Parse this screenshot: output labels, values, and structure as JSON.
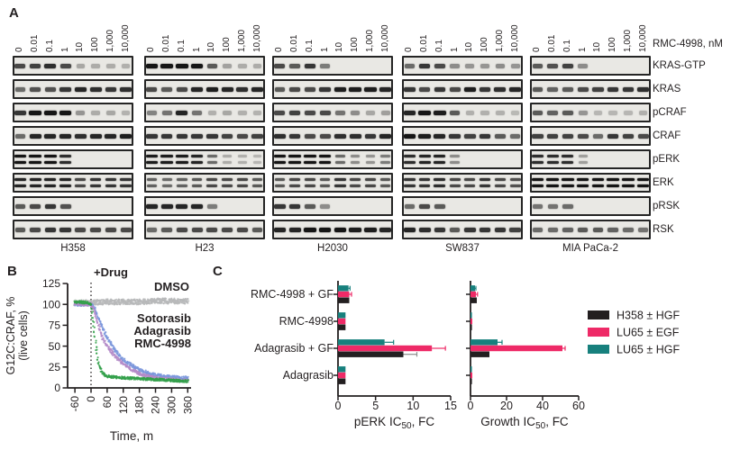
{
  "panels": {
    "a": "A",
    "b": "B",
    "c": "C"
  },
  "panelA": {
    "dose_labels": [
      "0",
      "0.01",
      "0.1",
      "1",
      "10",
      "100",
      "1,000",
      "10,000"
    ],
    "dose_unit_label": "RMC-4998, nM",
    "row_labels": [
      "KRAS-GTP",
      "KRAS",
      "pCRAF",
      "CRAF",
      "pERK",
      "ERK",
      "pRSK",
      "RSK"
    ],
    "double_band_rows": [
      "pERK",
      "ERK"
    ],
    "cell_lines": [
      {
        "name": "H358",
        "rows": [
          [
            0.7,
            0.75,
            0.85,
            0.7,
            0.15,
            0.12,
            0.12,
            0.1
          ],
          [
            0.5,
            0.65,
            0.65,
            0.8,
            0.9,
            0.85,
            0.8,
            0.85
          ],
          [
            0.8,
            1,
            1,
            1,
            0.25,
            0.12,
            0.15,
            0.08
          ],
          [
            0.5,
            0.9,
            0.9,
            0.9,
            0.85,
            0.9,
            0.9,
            0.95
          ],
          [
            1,
            1,
            1,
            0.85,
            0,
            0,
            0,
            0
          ],
          [
            0.9,
            0.9,
            0.9,
            0.9,
            0.7,
            0.8,
            0.8,
            0.8
          ],
          [
            0.6,
            0.7,
            0.8,
            0.65,
            0,
            0,
            0,
            0
          ],
          [
            0.6,
            0.7,
            0.8,
            0.8,
            0.7,
            0.7,
            0.7,
            0.7
          ]
        ]
      },
      {
        "name": "H23",
        "rows": [
          [
            1,
            1,
            1,
            1,
            0.6,
            0.18,
            0.12,
            0.12
          ],
          [
            0.7,
            0.6,
            0.7,
            0.9,
            0.95,
            0.9,
            0.85,
            0.9
          ],
          [
            0.35,
            0.45,
            0.9,
            0.45,
            0.1,
            0.15,
            0.1,
            0.08
          ],
          [
            0.8,
            0.8,
            0.8,
            0.8,
            0.8,
            0.75,
            0.7,
            0.75
          ],
          [
            0.95,
            0.95,
            0.95,
            0.9,
            0.5,
            0.12,
            0.1,
            0.06
          ],
          [
            0.55,
            0.5,
            0.55,
            0.6,
            0.7,
            0.7,
            0.7,
            0.6
          ],
          [
            0.9,
            0.9,
            0.9,
            0.9,
            0.4,
            0,
            0,
            0
          ],
          [
            0.5,
            0.6,
            0.7,
            0.7,
            0.7,
            0.7,
            0.7,
            0.6
          ]
        ]
      },
      {
        "name": "H2030",
        "rows": [
          [
            0.7,
            0.6,
            0.8,
            0.4,
            0,
            0,
            0,
            0
          ],
          [
            0.6,
            0.7,
            0.7,
            0.8,
            0.95,
            0.95,
            0.95,
            0.9
          ],
          [
            0.7,
            0.75,
            0.7,
            0.7,
            0.45,
            0.3,
            0.15,
            0.2
          ],
          [
            0.85,
            0.8,
            0.7,
            0.7,
            0.85,
            0.85,
            0.8,
            0.9
          ],
          [
            1,
            1,
            1,
            1,
            0.5,
            0.3,
            0.25,
            0.4
          ],
          [
            0.6,
            0.7,
            0.7,
            0.6,
            0.8,
            0.7,
            0.7,
            0.6
          ],
          [
            0.8,
            0.8,
            0.6,
            0.3,
            0,
            0,
            0,
            0
          ],
          [
            0.9,
            0.9,
            1,
            1,
            1,
            0.95,
            0.95,
            0.9
          ]
        ]
      },
      {
        "name": "SW837",
        "rows": [
          [
            0.5,
            0.8,
            0.7,
            0.3,
            0.25,
            0.25,
            0.3,
            0.25
          ],
          [
            0.8,
            0.7,
            0.8,
            0.7,
            0.95,
            0.8,
            0.85,
            0.9
          ],
          [
            0.9,
            1,
            0.95,
            0.6,
            0.1,
            0.1,
            0.1,
            0.05
          ],
          [
            1,
            0.95,
            0.9,
            0.8,
            0.75,
            0.8,
            0.6,
            0.5
          ],
          [
            0.85,
            0.9,
            0.9,
            0.3,
            0,
            0,
            0,
            0
          ],
          [
            0.8,
            0.8,
            0.85,
            0.7,
            0.7,
            0.8,
            0.7,
            0.65
          ],
          [
            0.5,
            0.7,
            0.6,
            0,
            0,
            0,
            0,
            0
          ],
          [
            0.9,
            0.85,
            0.8,
            0.6,
            0.8,
            0.8,
            0.8,
            0.75
          ]
        ]
      },
      {
        "name": "MIA PaCa-2",
        "rows": [
          [
            0.6,
            0.65,
            0.75,
            0.3,
            0,
            0,
            0,
            0
          ],
          [
            0.6,
            0.55,
            0.6,
            0.7,
            0.75,
            0.8,
            0.8,
            0.85
          ],
          [
            0.6,
            0.55,
            0.6,
            0.25,
            0.06,
            0.06,
            0.06,
            0.1
          ],
          [
            0.75,
            0.75,
            0.75,
            0.7,
            0.5,
            0.8,
            0.75,
            0.7
          ],
          [
            0.85,
            0.85,
            0.85,
            0.2,
            0,
            0,
            0,
            0
          ],
          [
            1,
            1,
            1,
            1,
            1,
            1,
            1,
            1
          ],
          [
            0.45,
            0.45,
            0.5,
            0,
            0,
            0,
            0,
            0
          ],
          [
            0.5,
            0.5,
            0.55,
            0.6,
            0.6,
            0.55,
            0.5,
            0.45
          ]
        ]
      }
    ]
  },
  "chart_data": [
    {
      "panel": "B",
      "type": "scatter",
      "title_annotation": "+Drug",
      "ylabel": "G12C:CRAF, %",
      "ylabel_line2": "(live cells)",
      "xlabel": "Time, m",
      "xlim": [
        -75,
        370
      ],
      "ylim": [
        0,
        125
      ],
      "xticks": [
        -60,
        0,
        60,
        120,
        180,
        240,
        300,
        360
      ],
      "yticks": [
        0,
        25,
        50,
        75,
        100,
        125
      ],
      "drug_added_at_x": 0,
      "series": [
        {
          "name": "DMSO",
          "color": "#b7b8ba",
          "jitter": 3.2,
          "x": [
            -60,
            0,
            60,
            120,
            180,
            240,
            300,
            360
          ],
          "y": [
            102,
            102,
            103,
            103,
            103,
            104,
            104,
            104
          ]
        },
        {
          "name": "Sotorasib",
          "color": "#7b96dc",
          "jitter": 1.9,
          "x": [
            -60,
            -10,
            0,
            10,
            20,
            30,
            45,
            60,
            90,
            120,
            150,
            180,
            210,
            240,
            270,
            300,
            330,
            360
          ],
          "y": [
            100,
            100,
            100,
            97,
            90,
            82,
            70,
            60,
            45,
            34,
            27,
            22,
            18,
            16,
            14,
            13,
            12,
            12
          ]
        },
        {
          "name": "Adagrasib",
          "color": "#b48bc8",
          "jitter": 1.8,
          "x": [
            -60,
            -10,
            0,
            10,
            20,
            30,
            45,
            60,
            90,
            120,
            150,
            180,
            210,
            240,
            270,
            300,
            330,
            360
          ],
          "y": [
            101,
            100,
            100,
            95,
            84,
            72,
            59,
            50,
            38,
            29,
            22,
            17,
            14,
            12,
            11,
            10,
            9,
            9
          ]
        },
        {
          "name": "RMC-4998",
          "color": "#33a04a",
          "jitter": 1.5,
          "x": [
            -60,
            -10,
            0,
            8,
            16,
            24,
            32,
            45,
            60,
            90,
            120,
            180,
            240,
            300,
            360
          ],
          "y": [
            103,
            102,
            100,
            80,
            55,
            35,
            24,
            17,
            14,
            13,
            12,
            11,
            10,
            9,
            8
          ]
        }
      ]
    },
    {
      "panel": "C-left",
      "type": "bar-horizontal",
      "xlabel_main": "pERK IC",
      "xlabel_sub": "50",
      "xlabel_tail": ", FC",
      "xticks": [
        0,
        5,
        10,
        15
      ],
      "xlim": [
        0,
        15
      ],
      "categories": [
        "RMC-4998 + GF",
        "RMC-4998",
        "Adagrasib + GF",
        "Adagrasib"
      ],
      "series": [
        {
          "name": "LU65 ± HGF",
          "color": "#17807d",
          "values": [
            1.4,
            1.0,
            6.2,
            1.0
          ],
          "errors": [
            0.2,
            0,
            1.2,
            0
          ]
        },
        {
          "name": "LU65 ± EGF",
          "color": "#ee2a67",
          "values": [
            1.5,
            1.0,
            12.5,
            1.0
          ],
          "errors": [
            0.3,
            0,
            1.8,
            0
          ]
        },
        {
          "name": "H358 ± HGF",
          "color": "#231f20",
          "error_color": "#8c8c8c",
          "values": [
            1.5,
            1.0,
            8.7,
            1.0
          ],
          "errors": [
            0,
            0,
            1.8,
            0
          ]
        }
      ]
    },
    {
      "panel": "C-right",
      "type": "bar-horizontal",
      "xlabel_main": "Growth IC",
      "xlabel_sub": "50",
      "xlabel_tail": ", FC",
      "xticks": [
        0,
        20,
        40,
        60
      ],
      "xlim": [
        0,
        60
      ],
      "categories": [
        "RMC-4998 + GF",
        "RMC-4998",
        "Adagrasib + GF",
        "Adagrasib"
      ],
      "series": [
        {
          "name": "LU65 ± HGF",
          "color": "#17807d",
          "values": [
            2.5,
            0.8,
            15,
            0.8
          ],
          "errors": [
            0.5,
            0,
            2.5,
            0
          ]
        },
        {
          "name": "LU65 ± EGF",
          "color": "#ee2a67",
          "values": [
            3.0,
            1.0,
            51,
            1.0
          ],
          "errors": [
            0.9,
            0,
            1.5,
            0
          ]
        },
        {
          "name": "H358 ± HGF",
          "color": "#231f20",
          "error_color": "#8c8c8c",
          "values": [
            3.5,
            0.8,
            10.5,
            0.8
          ],
          "errors": [
            0,
            0,
            0,
            0
          ]
        }
      ],
      "legend": [
        {
          "label": "H358 ± HGF",
          "color": "#231f20"
        },
        {
          "label": "LU65 ± EGF",
          "color": "#ee2a67"
        },
        {
          "label": "LU65 ± HGF",
          "color": "#17807d"
        }
      ]
    }
  ]
}
